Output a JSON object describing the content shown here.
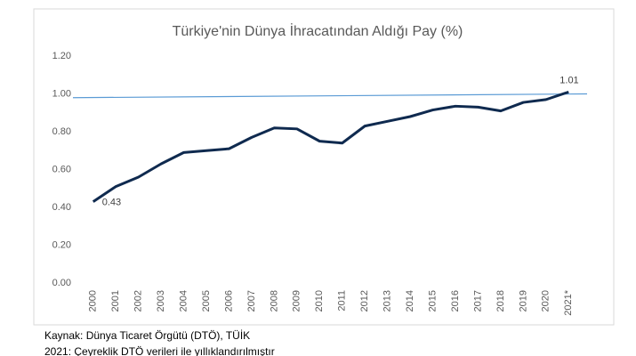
{
  "chart_data": {
    "type": "line",
    "title": "Türkiye'nin Dünya İhracatından Aldığı Pay (%)",
    "categories": [
      "2000",
      "2001",
      "2002",
      "2003",
      "2004",
      "2005",
      "2006",
      "2007",
      "2008",
      "2009",
      "2010",
      "2011",
      "2012",
      "2013",
      "2014",
      "2015",
      "2016",
      "2017",
      "2018",
      "2019",
      "2020",
      "2021*"
    ],
    "series": [
      {
        "color": "#0f2a4f",
        "values": [
          0.43,
          0.51,
          0.56,
          0.63,
          0.69,
          0.7,
          0.71,
          0.77,
          0.82,
          0.815,
          0.75,
          0.74,
          0.83,
          0.855,
          0.88,
          0.915,
          0.935,
          0.93,
          0.91,
          0.955,
          0.97,
          1.01
        ],
        "value_labels": [
          "0.43",
          null,
          null,
          null,
          null,
          null,
          null,
          null,
          null,
          null,
          null,
          null,
          null,
          null,
          null,
          null,
          null,
          null,
          null,
          null,
          null,
          "1.01"
        ]
      }
    ],
    "trendline": {
      "color": "#5b9bd5",
      "start": 0.98,
      "end": 1.0
    },
    "ylim": [
      0,
      1.2
    ],
    "yticks": [
      {
        "value": 0,
        "label": "0.00"
      },
      {
        "value": 0.2,
        "label": "0.20"
      },
      {
        "value": 0.4,
        "label": "0.40"
      },
      {
        "value": 0.6,
        "label": "0.60"
      },
      {
        "value": 0.8,
        "label": "0.80"
      },
      {
        "value": 1.0,
        "label": "1.00"
      },
      {
        "value": 1.2,
        "label": "1.20"
      }
    ],
    "grid": false
  },
  "notes": [
    "Kaynak: Dünya Ticaret Örgütü (DTÖ), TÜİK",
    "2021: Çeyreklik DTÖ verileri ile yıllıklandırılmıştır"
  ]
}
